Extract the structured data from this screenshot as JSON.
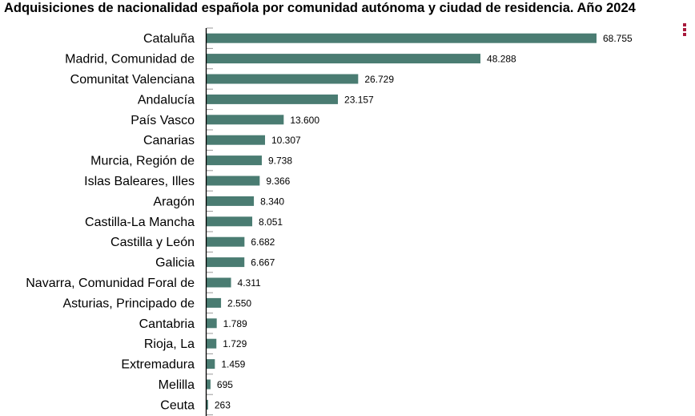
{
  "title": "Adquisiciones de nacionalidad española por comunidad autónoma y ciudad de residencia. Año 2024",
  "menu_icon": "vertical-dots-menu-icon",
  "chart_data": {
    "type": "bar",
    "orientation": "horizontal",
    "title": "Adquisiciones de nacionalidad española por comunidad autónoma y ciudad de residencia. Año 2024",
    "categories": [
      "Cataluña",
      "Madrid, Comunidad de",
      "Comunitat Valenciana",
      "Andalucía",
      "País Vasco",
      "Canarias",
      "Murcia, Región de",
      "Islas Baleares, Illes",
      "Aragón",
      "Castilla-La Mancha",
      "Castilla y León",
      "Galicia",
      "Navarra, Comunidad Foral de",
      "Asturias, Principado de",
      "Cantabria",
      "Rioja, La",
      "Extremadura",
      "Melilla",
      "Ceuta"
    ],
    "values": [
      68755,
      48288,
      26729,
      23157,
      13600,
      10307,
      9738,
      9366,
      8340,
      8051,
      6682,
      6667,
      4311,
      2550,
      1789,
      1729,
      1459,
      695,
      263
    ],
    "value_labels": [
      "68.755",
      "48.288",
      "26.729",
      "23.157",
      "13.600",
      "10.307",
      "9.738",
      "9.366",
      "8.340",
      "8.051",
      "6.682",
      "6.667",
      "4.311",
      "2.550",
      "1.789",
      "1.729",
      "1.459",
      "695",
      "263"
    ],
    "xlim": [
      0,
      68755
    ],
    "grid": false,
    "bar_color": "#4a7c72",
    "accent_color": "#a8193c"
  }
}
